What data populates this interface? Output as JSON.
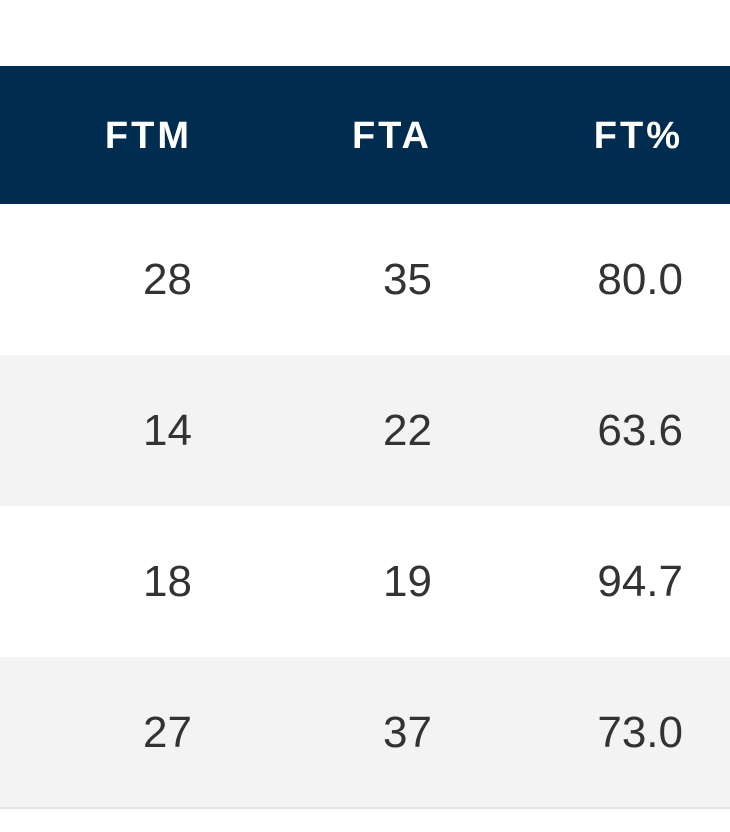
{
  "table": {
    "header": [
      "FTM",
      "FTA",
      "FT%"
    ],
    "rows": [
      [
        "28",
        "35",
        "80.0"
      ],
      [
        "14",
        "22",
        "63.6"
      ],
      [
        "18",
        "19",
        "94.7"
      ],
      [
        "27",
        "37",
        "73.0"
      ]
    ]
  }
}
